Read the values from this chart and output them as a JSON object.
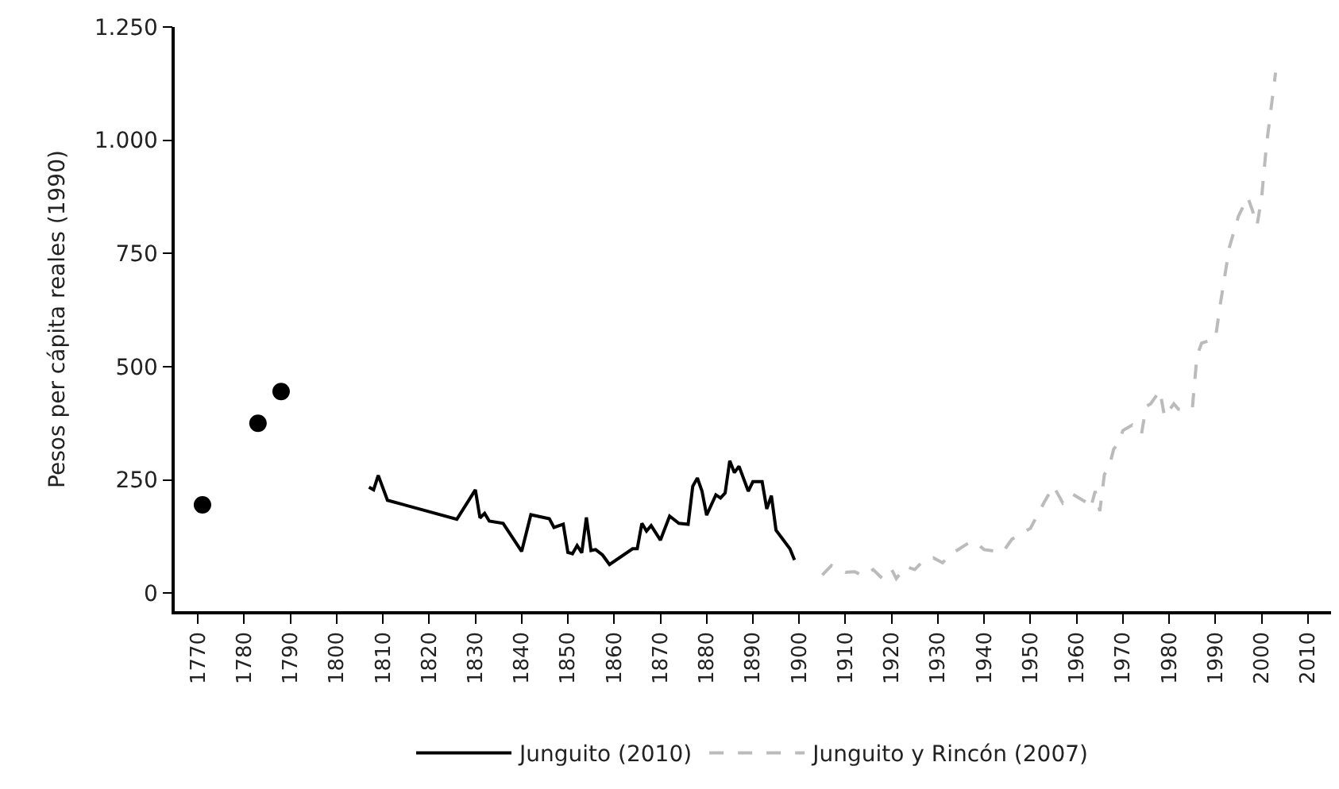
{
  "chart_data": {
    "type": "line",
    "ylabel": "Pesos per cápita reales (1990)",
    "xlim": [
      1765,
      2015
    ],
    "ylim": [
      -40,
      1250
    ],
    "xticks": [
      1770,
      1780,
      1790,
      1800,
      1810,
      1820,
      1830,
      1840,
      1850,
      1860,
      1870,
      1880,
      1890,
      1900,
      1910,
      1920,
      1930,
      1940,
      1950,
      1960,
      1970,
      1980,
      1990,
      2000,
      2010
    ],
    "yticks": [
      {
        "value": 0,
        "label": "0"
      },
      {
        "value": 250,
        "label": "250"
      },
      {
        "value": 500,
        "label": "500"
      },
      {
        "value": 750,
        "label": "750"
      },
      {
        "value": 1000,
        "label": "1.000"
      },
      {
        "value": 1250,
        "label": "1.250"
      }
    ],
    "legend": "bottom",
    "series": [
      {
        "type": "scatter",
        "marker": "circle",
        "color": "#000000",
        "x": [
          1771,
          1783,
          1788
        ],
        "values": [
          195,
          375,
          445
        ]
      },
      {
        "name": "Junguito (2010)",
        "line_style": "solid",
        "color": "#000000",
        "x": [
          1807,
          1808,
          1809,
          1811,
          1826,
          1830,
          1831,
          1832,
          1833,
          1836,
          1840,
          1842,
          1846,
          1847,
          1849,
          1850,
          1851,
          1852,
          1853,
          1854,
          1855,
          1856,
          1857.5,
          1859,
          1864,
          1865,
          1866,
          1867,
          1868,
          1870,
          1872,
          1874,
          1876,
          1877,
          1878,
          1879,
          1880,
          1882,
          1883,
          1884,
          1885,
          1886,
          1887,
          1889,
          1890,
          1892,
          1893,
          1894,
          1895,
          1898,
          1899
        ],
        "values": [
          234,
          228,
          260,
          205,
          163,
          228,
          166,
          176,
          159,
          154,
          92,
          173,
          164,
          145,
          152,
          90,
          87,
          105,
          89,
          167,
          94,
          96,
          84,
          63,
          98,
          98,
          154,
          137,
          149,
          117,
          170,
          154,
          152,
          236,
          254,
          225,
          172,
          217,
          210,
          221,
          292,
          266,
          280,
          225,
          246,
          246,
          186,
          215,
          139,
          98,
          73
        ]
      },
      {
        "name": "Junguito y Rincón (2007)",
        "line_style": "dashed",
        "color": "#bbbbbb",
        "x": [
          1905,
          1907,
          1910,
          1912,
          1914,
          1916,
          1918,
          1920,
          1921,
          1923,
          1925,
          1927,
          1929,
          1931,
          1933,
          1937,
          1938,
          1940,
          1944,
          1946,
          1950,
          1953,
          1955,
          1957,
          1959,
          1962,
          1963,
          1964,
          1965,
          1966,
          1967,
          1968,
          1969,
          1970,
          1972,
          1974,
          1975,
          1976,
          1978,
          1979,
          1981,
          1982,
          1985,
          1986,
          1987,
          1990,
          1991,
          1993,
          1995,
          1997,
          1998,
          1999,
          2000,
          2001,
          2003
        ],
        "values": [
          40,
          61,
          46,
          47,
          38,
          52,
          32,
          52,
          32,
          59,
          52,
          73,
          78,
          67,
          87,
          113,
          113,
          96,
          90,
          119,
          143,
          201,
          236,
          199,
          219,
          201,
          187,
          225,
          181,
          262,
          277,
          318,
          330,
          359,
          371,
          350,
          412,
          418,
          447,
          389,
          418,
          406,
          406,
          523,
          552,
          562,
          634,
          763,
          833,
          874,
          845,
          812,
          874,
          986,
          1149
        ]
      }
    ]
  }
}
